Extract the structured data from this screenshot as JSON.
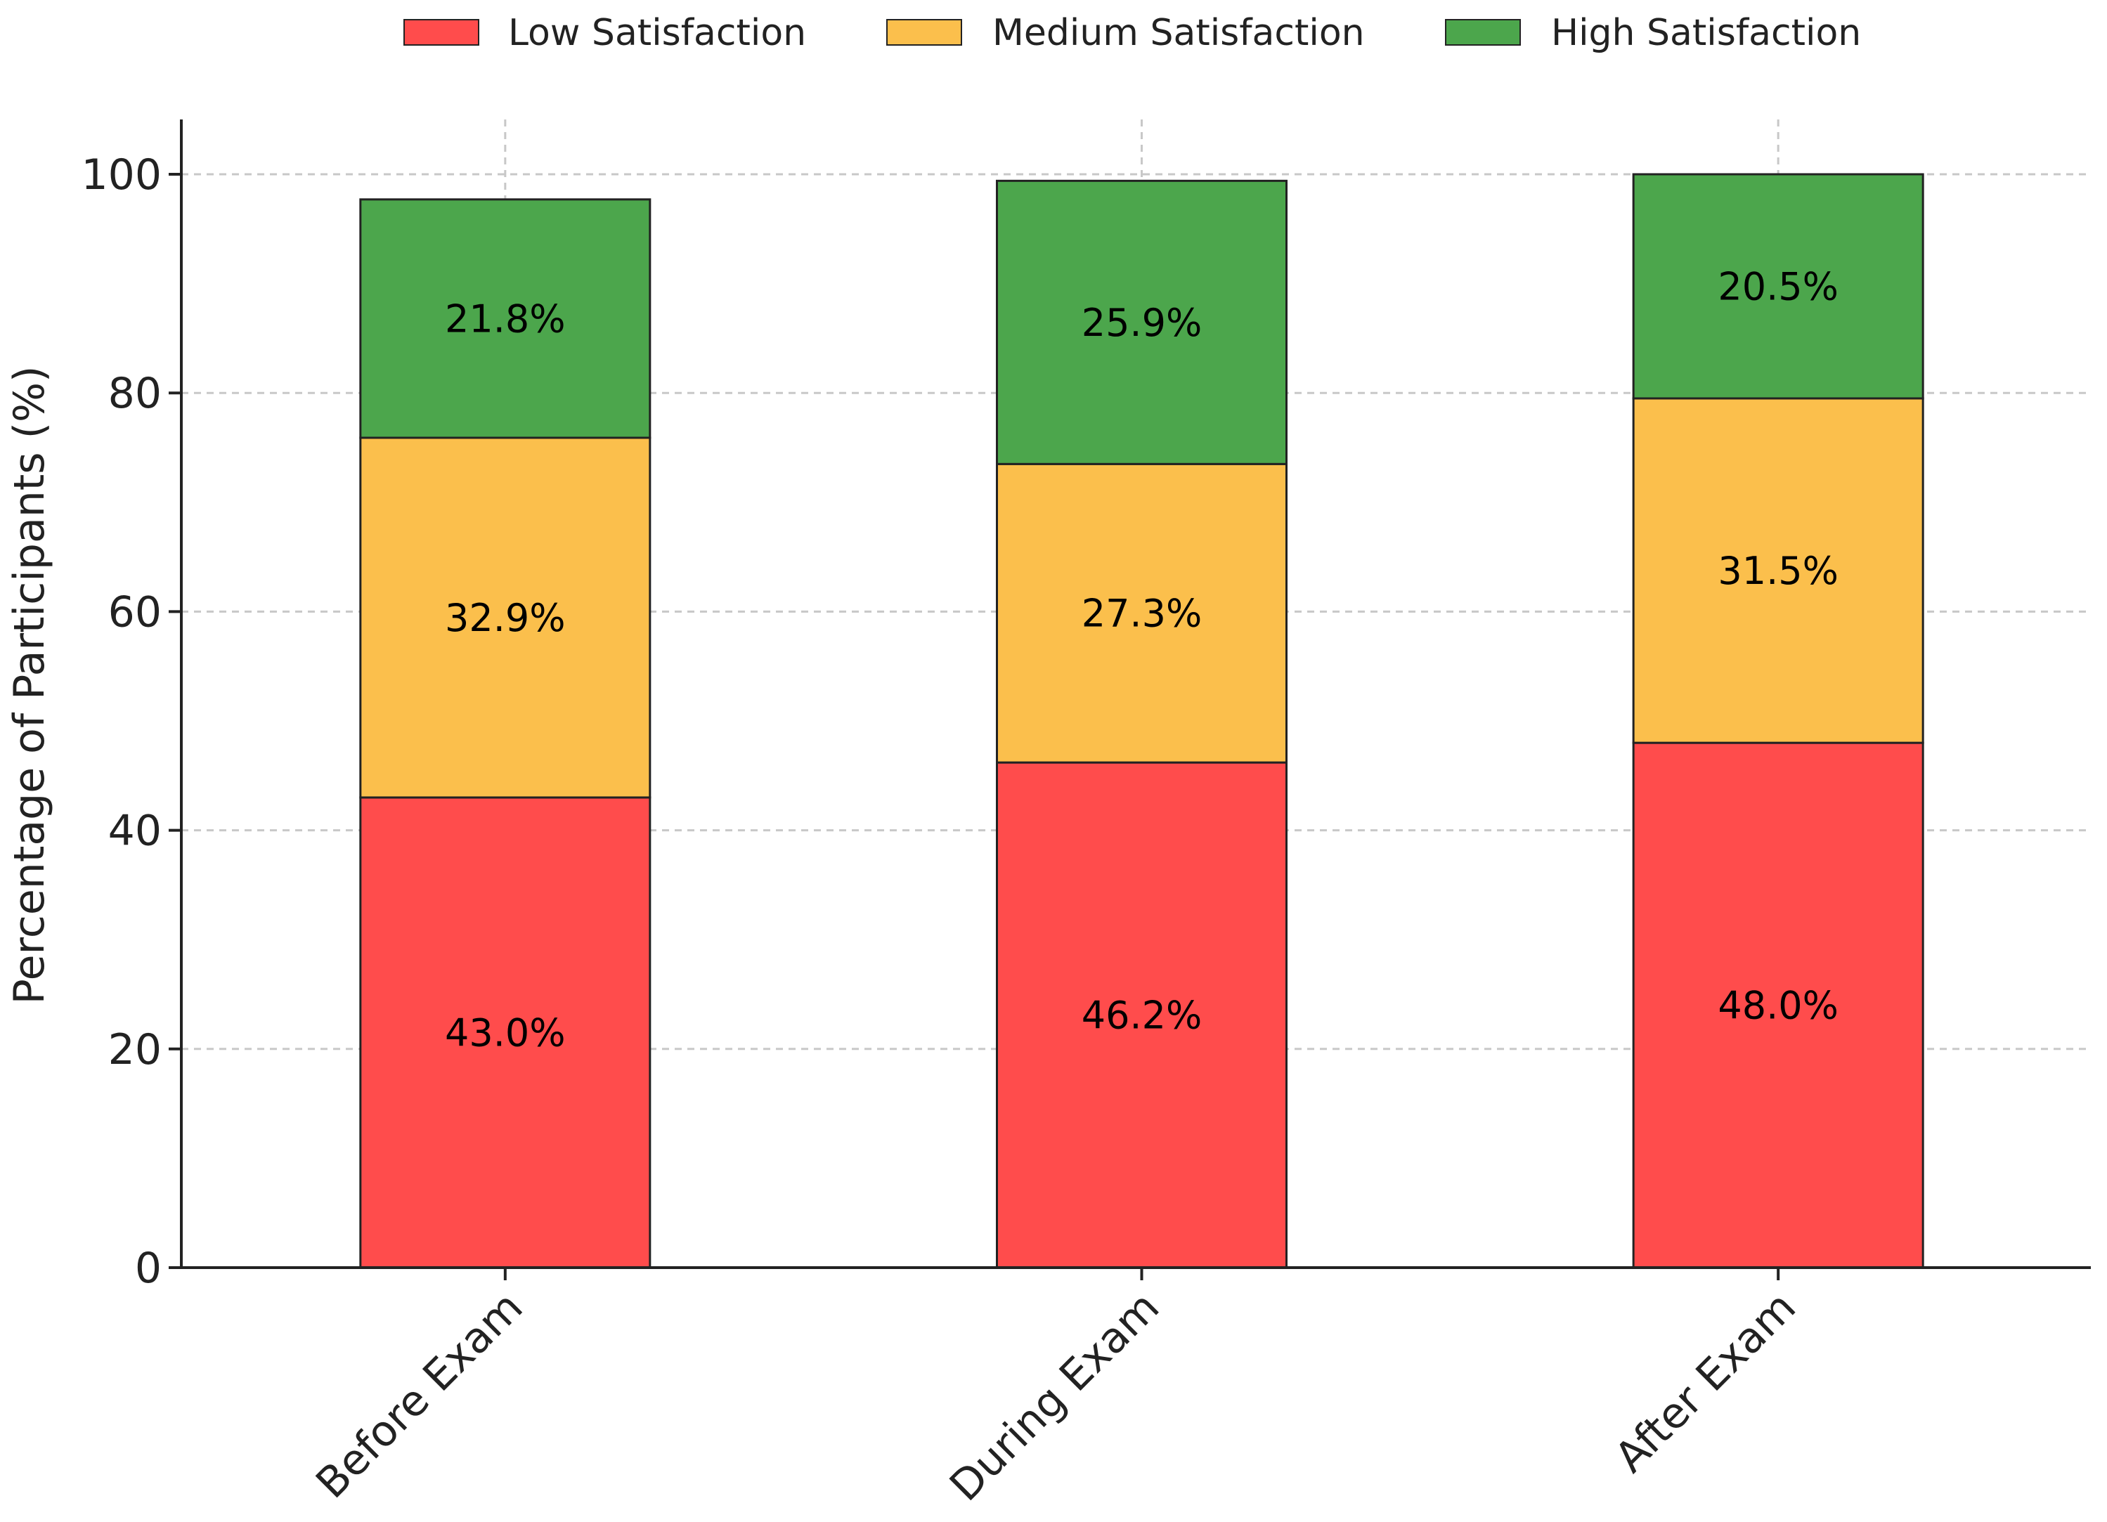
{
  "chart_data": {
    "type": "bar",
    "stacked": true,
    "title": "",
    "xlabel": "",
    "ylabel": "Percentage of Participants (%)",
    "ylim": [
      0,
      105
    ],
    "yticks": [
      0,
      20,
      40,
      60,
      80,
      100
    ],
    "grid": true,
    "legend_position": "top-center",
    "categories": [
      "Before Exam",
      "During Exam",
      "After Exam"
    ],
    "series": [
      {
        "name": "Low Satisfaction",
        "color": "#ff4c4c",
        "values": [
          43.0,
          46.2,
          48.0
        ],
        "labels": [
          "43.0%",
          "46.2%",
          "48.0%"
        ]
      },
      {
        "name": "Medium Satisfaction",
        "color": "#fbbf4c",
        "values": [
          32.9,
          27.3,
          31.5
        ],
        "labels": [
          "32.9%",
          "27.3%",
          "31.5%"
        ]
      },
      {
        "name": "High Satisfaction",
        "color": "#4ca64c",
        "values": [
          21.8,
          25.9,
          20.5
        ],
        "labels": [
          "21.8%",
          "25.9%",
          "20.5%"
        ]
      }
    ]
  }
}
